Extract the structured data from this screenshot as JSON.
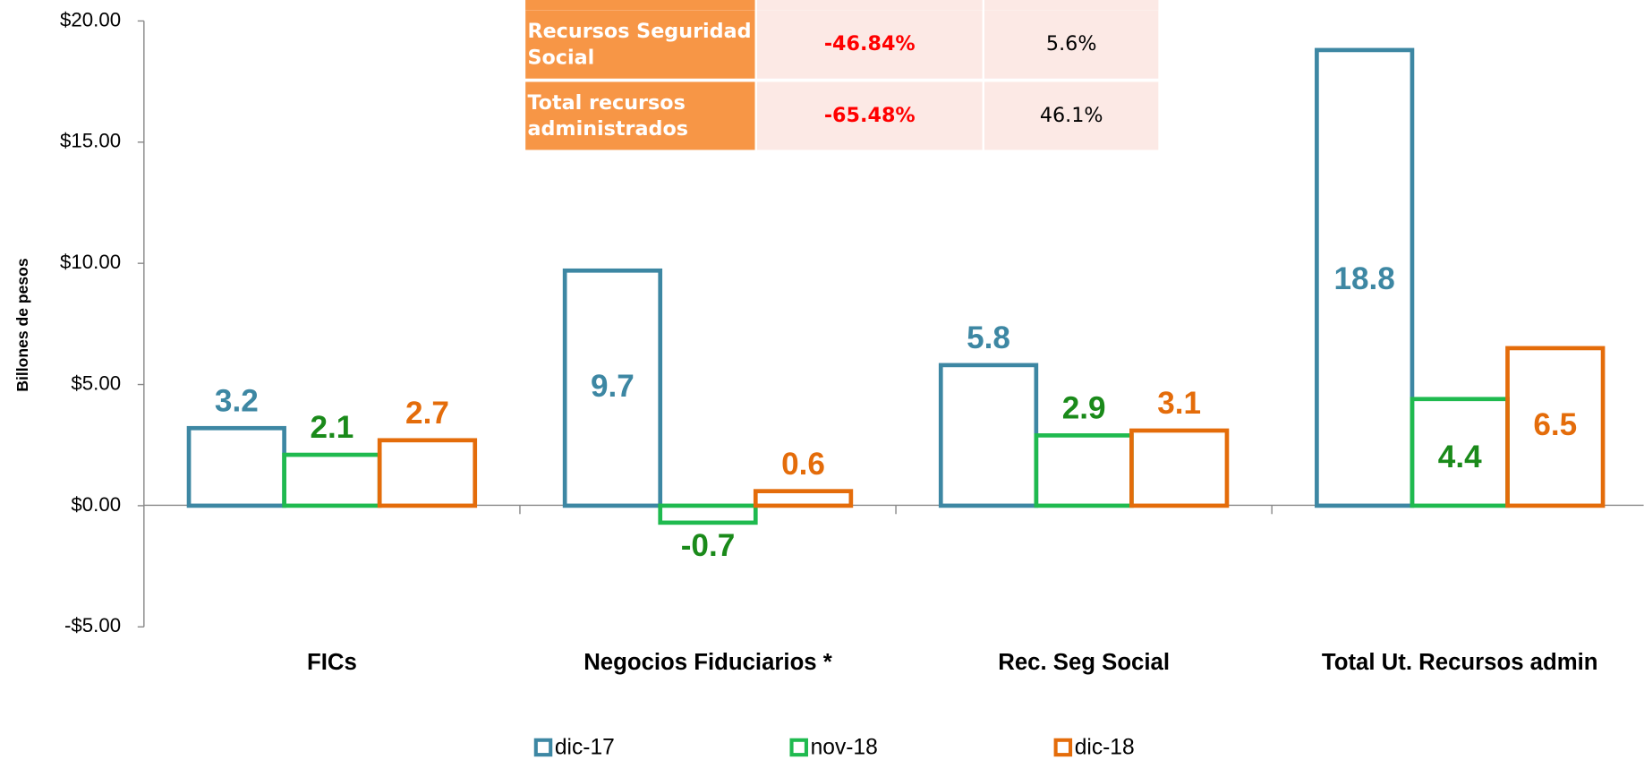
{
  "chart_data": {
    "type": "bar",
    "categories": [
      "FICs",
      "Negocios Fiduciarios *",
      "Rec. Seg Social",
      "Total Ut. Recursos admin"
    ],
    "series": [
      {
        "name": "dic-17",
        "color": "#3d87a3",
        "label_color": "#3d87a3",
        "values": [
          3.2,
          9.7,
          5.8,
          18.8
        ]
      },
      {
        "name": "nov-18",
        "color": "#1fba4f",
        "label_color": "#1a8a1a",
        "values": [
          2.1,
          -0.7,
          2.9,
          4.4
        ]
      },
      {
        "name": "dic-18",
        "color": "#e46c0a",
        "label_color": "#e46c0a",
        "values": [
          2.7,
          0.6,
          3.1,
          6.5
        ]
      }
    ],
    "ylabel": "Billones de pesos",
    "ylim": [
      -5,
      20
    ],
    "yticks": [
      {
        "value": -5,
        "label": "-$5.00"
      },
      {
        "value": 0,
        "label": "$0.00"
      },
      {
        "value": 5,
        "label": "$5.00"
      },
      {
        "value": 10,
        "label": "$10.00"
      },
      {
        "value": 15,
        "label": "$15.00"
      },
      {
        "value": 20,
        "label": "$20.00"
      }
    ],
    "legend": "bottom"
  },
  "table": {
    "rows": [
      [
        "Recursos Seguridad Social",
        "-46.84%",
        "5.6%"
      ],
      [
        "Total recursos administrados",
        "-65.48%",
        "46.1%"
      ]
    ]
  }
}
